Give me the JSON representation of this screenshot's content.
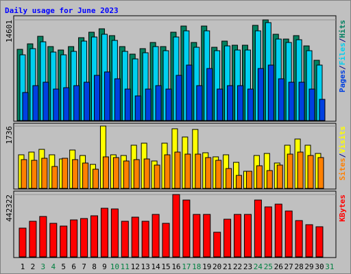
{
  "title": "Daily usage for June 2023",
  "legend_separator": "/",
  "chart_data": [
    {
      "type": "bar",
      "ylim": [
        0,
        14601
      ],
      "yticks": [
        14601
      ],
      "series": [
        {
          "name": "Hits",
          "color": "#008060",
          "values": [
            10330,
            11125,
            12217,
            10727,
            10231,
            10727,
            12019,
            12813,
            13310,
            12317,
            10727,
            9635,
            10430,
            11323,
            10727,
            12813,
            13707,
            11323,
            13707,
            10628,
            11522,
            10926,
            10926,
            13807,
            14601,
            12515,
            11820,
            12317,
            10827,
            8741,
            null
          ]
        },
        {
          "name": "Files",
          "color": "#00d0f0",
          "values": [
            9536,
            10430,
            11423,
            9933,
            9536,
            10033,
            11522,
            12118,
            12516,
            11622,
            10033,
            8940,
            9834,
            10728,
            10132,
            12118,
            13012,
            10628,
            13012,
            10132,
            10827,
            10231,
            10231,
            13012,
            14204,
            11820,
            11324,
            11721,
            10132,
            8046,
            null
          ]
        },
        {
          "name": "Pages",
          "color": "#0040e0",
          "values": [
            4073,
            5066,
            5562,
            4569,
            4768,
            5066,
            5562,
            6556,
            7052,
            6059,
            4569,
            3576,
            4569,
            5066,
            4569,
            6556,
            8046,
            5066,
            7549,
            4569,
            5066,
            5066,
            4569,
            7549,
            8046,
            6059,
            5562,
            5562,
            4569,
            3079,
            null
          ]
        }
      ]
    },
    {
      "type": "bar",
      "ylim": [
        0,
        1736
      ],
      "yticks": [
        1736
      ],
      "series": [
        {
          "name": "Visits",
          "color": "#ffff00",
          "values": [
            935,
            1011,
            1087,
            935,
            820,
            1068,
            916,
            668,
            1736,
            935,
            916,
            1202,
            1259,
            763,
            1259,
            1660,
            1431,
            1641,
            992,
            878,
            935,
            725,
            477,
            916,
            973,
            706,
            1202,
            1374,
            1202,
            973,
            null
          ]
        },
        {
          "name": "Sites",
          "color": "#ff8000",
          "values": [
            801,
            782,
            839,
            610,
            839,
            801,
            706,
            534,
            878,
            858,
            763,
            801,
            820,
            649,
            935,
            1011,
            954,
            954,
            858,
            782,
            553,
            362,
            477,
            630,
            496,
            649,
            954,
            1011,
            916,
            858,
            null
          ]
        }
      ]
    },
    {
      "type": "bar",
      "ylim": [
        0,
        442322
      ],
      "yticks": [
        442322
      ],
      "categories": [
        "1",
        "2",
        "3",
        "4",
        "5",
        "6",
        "7",
        "8",
        "9",
        "10",
        "11",
        "12",
        "13",
        "14",
        "15",
        "16",
        "17",
        "18",
        "19",
        "20",
        "21",
        "22",
        "23",
        "24",
        "25",
        "26",
        "27",
        "28",
        "29",
        "30",
        "31"
      ],
      "highlight_categories": [
        2,
        3,
        9,
        10,
        16,
        17,
        23,
        24,
        30
      ],
      "highlight_color": "#008040",
      "series": [
        {
          "name": "KBytes",
          "color": "#ff0000",
          "values": [
            204149,
            252756,
            286781,
            238174,
            218730,
            262478,
            272198,
            291640,
            345108,
            340248,
            252756,
            281919,
            252756,
            301362,
            238174,
            442322,
            403437,
            301362,
            301362,
            174985,
            267337,
            301362,
            301362,
            403437,
            354829,
            374271,
            325665,
            257616,
            228452,
            213870,
            null
          ]
        }
      ]
    }
  ]
}
